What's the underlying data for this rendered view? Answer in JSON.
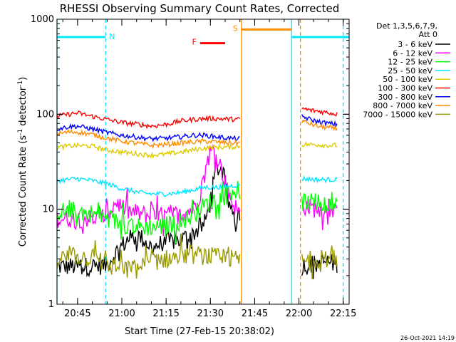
{
  "chart_data": {
    "type": "line",
    "title": "RHESSI Observing Summary Count Rates, Corrected",
    "xlabel": "Start Time (27-Feb-15 20:38:02)",
    "ylabel": "Corrected Count Rate (s⁻¹ detector⁻¹)",
    "ylabel_parts": [
      "Corrected Count Rate (s",
      "-1",
      " detector",
      "-1",
      ")"
    ],
    "yscale": "log",
    "ylim": [
      1,
      1000
    ],
    "yticks": [
      1,
      10,
      100,
      1000
    ],
    "ytick_labels": [
      "1",
      "10",
      "100",
      "1000"
    ],
    "xlim_minutes": [
      38.03,
      137.0
    ],
    "xtick_minutes": [
      45,
      60,
      75,
      90,
      105,
      120,
      135
    ],
    "xtick_labels": [
      "20:45",
      "21:00",
      "21:15",
      "21:30",
      "21:45",
      "22:00",
      "22:15"
    ],
    "legend_header": [
      "Det 1,3,5,6,7,9,",
      "Att 0"
    ],
    "legend_position": "top-right",
    "footer_date": "26-Oct-2021 14:19",
    "flags": [
      {
        "label": "N",
        "color": "#00e8ff",
        "level": 650,
        "segments": [
          [
            38.03,
            54.5
          ],
          [
            117.5,
            137.0
          ]
        ]
      },
      {
        "label": "F",
        "color": "#ff0000",
        "level": 560,
        "segments": [
          [
            86.5,
            95.0
          ]
        ]
      },
      {
        "label": "S",
        "color": "#ff8c00",
        "level": 780,
        "segments": [
          [
            100.5,
            117.5
          ]
        ]
      }
    ],
    "intervals": [
      {
        "kind": "night",
        "color": "#00e8ff",
        "start": 38.03,
        "end": 54.5
      },
      {
        "kind": "saa",
        "color": "#ff8c00",
        "start": 100.5,
        "end": 120.5
      },
      {
        "kind": "night",
        "color": "#00e8ff",
        "start": 117.5,
        "end": 135.0
      }
    ],
    "gap": [
      100.5,
      121.0
    ],
    "series": [
      {
        "name": "3 - 6 keV",
        "color": "#000000",
        "x": [
          38,
          50,
          55,
          58,
          62,
          66,
          70,
          75,
          80,
          84,
          88,
          90,
          92,
          94,
          96,
          98,
          100,
          121,
          126,
          130,
          133
        ],
        "y": [
          2.5,
          2.5,
          2.6,
          3.5,
          4.8,
          5.2,
          4.0,
          4.5,
          4.8,
          5.5,
          7.0,
          12,
          28,
          25,
          12,
          9,
          7,
          2.5,
          2.7,
          2.8,
          2.6
        ]
      },
      {
        "name": "6 - 12 keV",
        "color": "#ff00ff",
        "x": [
          38,
          50,
          55,
          58,
          62,
          66,
          70,
          75,
          80,
          84,
          86,
          88,
          89,
          90,
          91,
          92,
          94,
          96,
          98,
          100,
          121,
          126,
          130,
          133
        ],
        "y": [
          8,
          8,
          8.5,
          12,
          9.5,
          9,
          8.5,
          8.5,
          9,
          10,
          13,
          22,
          32,
          40,
          42,
          38,
          25,
          15,
          11,
          9,
          11,
          10,
          9.5,
          9
        ]
      },
      {
        "name": "12 - 25 keV",
        "color": "#00ff00",
        "x": [
          38,
          45,
          50,
          55,
          60,
          66,
          70,
          75,
          80,
          84,
          88,
          92,
          96,
          98,
          100,
          121,
          126,
          130,
          133
        ],
        "y": [
          9.5,
          9.5,
          9,
          8,
          7,
          6.5,
          6.5,
          6.8,
          7.5,
          8.5,
          11,
          13,
          14,
          17,
          11,
          12,
          11.5,
          10.5,
          10.5
        ]
      },
      {
        "name": "25 - 50 keV",
        "color": "#00e8ff",
        "x": [
          38,
          45,
          50,
          55,
          60,
          66,
          70,
          75,
          80,
          84,
          88,
          92,
          96,
          100,
          121,
          126,
          130,
          133
        ],
        "y": [
          20,
          21,
          20,
          18.5,
          16.5,
          15,
          14.5,
          14.5,
          15,
          16,
          17,
          17,
          17.5,
          18,
          21,
          20.5,
          20.5,
          20.5
        ]
      },
      {
        "name": "50 - 100 keV",
        "color": "#ddcc00",
        "x": [
          38,
          45,
          50,
          55,
          60,
          66,
          70,
          75,
          80,
          84,
          88,
          92,
          96,
          100,
          121,
          126,
          130,
          133
        ],
        "y": [
          45,
          47,
          46,
          42,
          40,
          38,
          37,
          38,
          40,
          42,
          44,
          45,
          45,
          46,
          48,
          48,
          47,
          47
        ]
      },
      {
        "name": "100 - 300 keV",
        "color": "#ff0000",
        "x": [
          38,
          42,
          45,
          50,
          55,
          60,
          66,
          70,
          75,
          80,
          84,
          88,
          92,
          96,
          100,
          121,
          124,
          126,
          130,
          133
        ],
        "y": [
          95,
          100,
          103,
          95,
          88,
          82,
          78,
          75,
          78,
          85,
          88,
          90,
          90,
          89,
          88,
          115,
          110,
          108,
          104,
          100
        ]
      },
      {
        "name": "300 - 800 keV",
        "color": "#0000ff",
        "x": [
          38,
          42,
          45,
          50,
          55,
          60,
          66,
          70,
          75,
          80,
          84,
          88,
          92,
          96,
          100,
          121,
          124,
          126,
          130,
          133
        ],
        "y": [
          70,
          74,
          75,
          70,
          64,
          60,
          57,
          55,
          56,
          58,
          60,
          60,
          58,
          56,
          55,
          95,
          88,
          84,
          80,
          78
        ]
      },
      {
        "name": "800 - 7000 keV",
        "color": "#ff8c00",
        "x": [
          38,
          42,
          45,
          50,
          55,
          60,
          66,
          70,
          75,
          80,
          84,
          88,
          92,
          96,
          100,
          121,
          124,
          126,
          130,
          133
        ],
        "y": [
          62,
          65,
          65,
          61,
          56,
          52,
          49,
          47,
          48,
          50,
          51,
          52,
          51,
          50,
          50,
          85,
          79,
          75,
          72,
          70
        ]
      },
      {
        "name": "7000 - 15000 keV",
        "color": "#999900",
        "x": [
          38,
          45,
          50,
          54,
          55,
          60,
          62,
          66,
          70,
          75,
          80,
          85,
          90,
          95,
          100,
          121,
          125,
          130,
          133
        ],
        "y": [
          3,
          3.2,
          3,
          2.8,
          2.5,
          2.4,
          2.3,
          2.5,
          2.8,
          3.0,
          3.2,
          3.3,
          3.2,
          3.0,
          3.0,
          2.8,
          3.0,
          3.0,
          3.0
        ]
      }
    ]
  }
}
